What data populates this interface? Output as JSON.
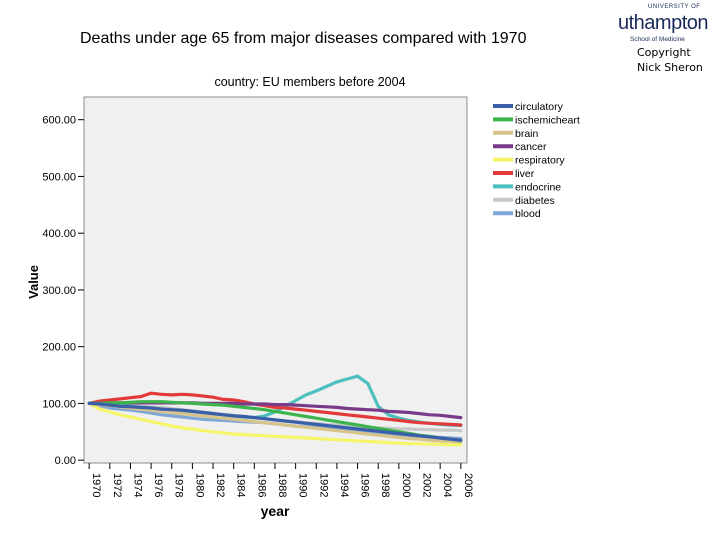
{
  "slide": {
    "title": "Deaths under age 65 from major diseases compared with 1970",
    "copyright_line1": "Copyright",
    "copyright_line2": "Nick Sheron"
  },
  "logo": {
    "university": "UNIVERSITY OF",
    "name": "uthampton",
    "school": "School of Medicine"
  },
  "colors": {
    "circulatory": "#3a5ea8",
    "ischemicheart": "#3cb44b",
    "brain": "#d8c48a",
    "cancer": "#7a3a8a",
    "respiratory": "#f5f56a",
    "liver": "#e23a3a",
    "endocrine": "#4cbfbf",
    "diabetes": "#c8c8c8",
    "blood": "#7ea6d6",
    "plot_background": "#f0f0f0"
  },
  "chart_data": {
    "type": "line",
    "title": "country: EU members before 2004",
    "xlabel": "year",
    "ylabel": "Value",
    "ylim": [
      -5,
      640
    ],
    "yticks": [
      0,
      100,
      200,
      300,
      400,
      500,
      600
    ],
    "ytick_labels": [
      "0.00",
      "100.00",
      "200.00",
      "300.00",
      "400.00",
      "500.00",
      "600.00"
    ],
    "xticks": [
      1970,
      1972,
      1974,
      1976,
      1978,
      1980,
      1982,
      1984,
      1986,
      1988,
      1990,
      1992,
      1994,
      1996,
      1998,
      2000,
      2002,
      2004,
      2006
    ],
    "legend_position": "top-right",
    "x": [
      1970,
      1971,
      1972,
      1973,
      1974,
      1975,
      1976,
      1977,
      1978,
      1979,
      1980,
      1981,
      1982,
      1983,
      1984,
      1985,
      1986,
      1987,
      1988,
      1989,
      1990,
      1991,
      1992,
      1993,
      1994,
      1995,
      1996,
      1997,
      1998,
      1999,
      2000,
      2001,
      2002,
      2003,
      2004,
      2005,
      2006
    ],
    "series": [
      {
        "name": "circulatory",
        "color_key": "circulatory",
        "values": [
          100,
          99,
          97,
          95,
          94,
          93,
          92,
          90,
          89,
          88,
          86,
          84,
          82,
          80,
          78,
          77,
          75,
          73,
          71,
          69,
          67,
          65,
          63,
          61,
          59,
          57,
          55,
          53,
          51,
          49,
          47,
          45,
          43,
          41,
          39,
          37,
          35
        ]
      },
      {
        "name": "ischemicheart",
        "color_key": "ischemicheart",
        "values": [
          100,
          100,
          101,
          101,
          102,
          103,
          103,
          103,
          102,
          101,
          100,
          99,
          98,
          97,
          95,
          93,
          91,
          89,
          86,
          83,
          80,
          77,
          74,
          71,
          68,
          65,
          62,
          59,
          56,
          53,
          50,
          47,
          44,
          42,
          39,
          37,
          35
        ]
      },
      {
        "name": "brain",
        "color_key": "brain",
        "values": [
          100,
          98,
          96,
          94,
          92,
          90,
          88,
          86,
          84,
          82,
          80,
          78,
          76,
          74,
          72,
          70,
          68,
          66,
          64,
          62,
          60,
          58,
          56,
          54,
          52,
          50,
          48,
          46,
          44,
          42,
          40,
          38,
          37,
          35,
          34,
          33,
          32
        ]
      },
      {
        "name": "cancer",
        "color_key": "cancer",
        "values": [
          100,
          100,
          101,
          101,
          101,
          101,
          101,
          101,
          101,
          101,
          101,
          100,
          100,
          100,
          100,
          99,
          99,
          99,
          98,
          98,
          97,
          96,
          95,
          94,
          93,
          91,
          90,
          89,
          88,
          86,
          85,
          84,
          82,
          80,
          79,
          77,
          75
        ]
      },
      {
        "name": "respiratory",
        "color_key": "respiratory",
        "values": [
          100,
          90,
          85,
          80,
          76,
          72,
          68,
          64,
          60,
          57,
          55,
          52,
          50,
          48,
          46,
          45,
          44,
          43,
          42,
          41,
          40,
          39,
          38,
          37,
          36,
          35,
          34,
          33,
          32,
          31,
          30,
          29,
          29,
          28,
          28,
          27,
          27
        ]
      },
      {
        "name": "liver",
        "color_key": "liver",
        "values": [
          100,
          104,
          106,
          108,
          110,
          112,
          118,
          116,
          115,
          116,
          115,
          113,
          111,
          107,
          106,
          103,
          99,
          96,
          93,
          92,
          90,
          88,
          86,
          84,
          82,
          80,
          78,
          76,
          74,
          72,
          70,
          68,
          66,
          65,
          64,
          63,
          62
        ]
      },
      {
        "name": "endocrine",
        "color_key": "endocrine",
        "values": [
          100,
          99,
          97,
          96,
          95,
          93,
          92,
          90,
          89,
          87,
          86,
          84,
          82,
          80,
          78,
          76,
          75,
          78,
          85,
          95,
          105,
          115,
          122,
          130,
          138,
          143,
          148,
          135,
          95,
          80,
          74,
          70,
          67,
          65,
          63,
          62,
          61
        ]
      },
      {
        "name": "diabetes",
        "color_key": "diabetes",
        "values": [
          100,
          99,
          98,
          97,
          96,
          95,
          94,
          93,
          91,
          89,
          87,
          85,
          83,
          81,
          79,
          77,
          75,
          73,
          71,
          69,
          68,
          66,
          65,
          63,
          62,
          60,
          59,
          58,
          57,
          56,
          55,
          55,
          54,
          54,
          53,
          53,
          52
        ]
      },
      {
        "name": "blood",
        "color_key": "blood",
        "values": [
          100,
          96,
          92,
          90,
          88,
          86,
          83,
          80,
          78,
          76,
          74,
          72,
          71,
          70,
          69,
          68,
          67,
          66,
          64,
          62,
          60,
          59,
          58,
          56,
          55,
          53,
          52,
          50,
          48,
          46,
          44,
          43,
          42,
          41,
          40,
          39,
          38
        ]
      }
    ]
  }
}
